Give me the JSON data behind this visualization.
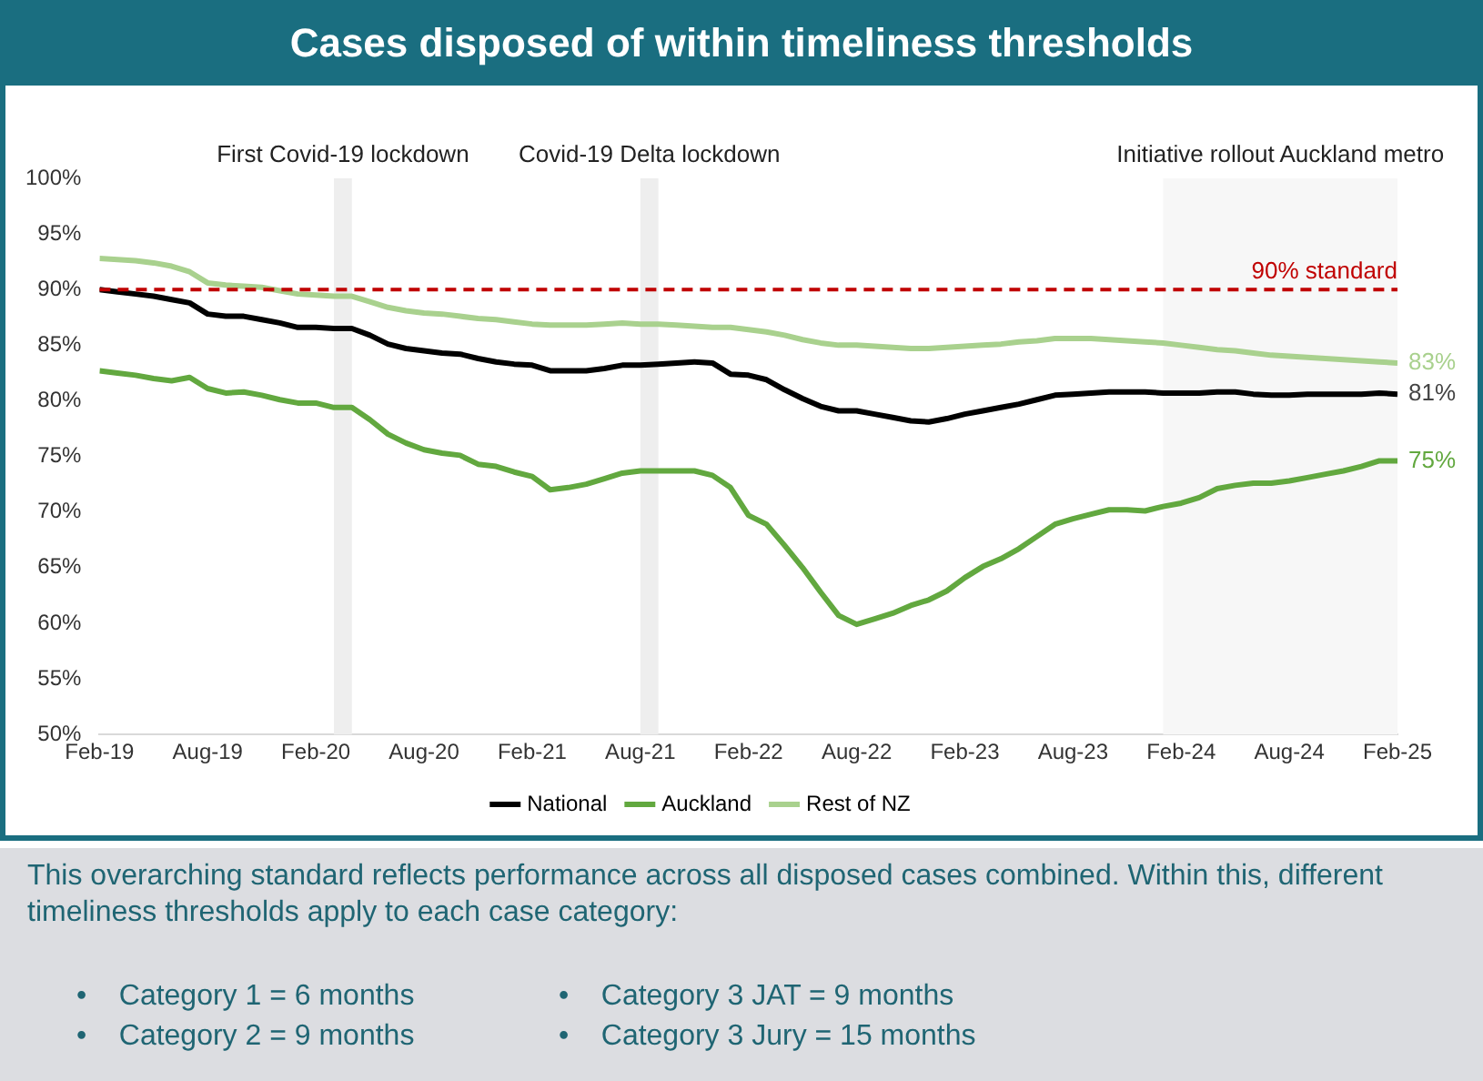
{
  "chart_data": {
    "type": "line",
    "title": "Cases disposed of within timeliness thresholds",
    "x": [
      "2019-02",
      "2019-03",
      "2019-04",
      "2019-05",
      "2019-06",
      "2019-07",
      "2019-08",
      "2019-09",
      "2019-10",
      "2019-11",
      "2019-12",
      "2020-01",
      "2020-02",
      "2020-03",
      "2020-04",
      "2020-05",
      "2020-06",
      "2020-07",
      "2020-08",
      "2020-09",
      "2020-10",
      "2020-11",
      "2020-12",
      "2021-01",
      "2021-02",
      "2021-03",
      "2021-04",
      "2021-05",
      "2021-06",
      "2021-07",
      "2021-08",
      "2021-09",
      "2021-10",
      "2021-11",
      "2021-12",
      "2022-01",
      "2022-02",
      "2022-03",
      "2022-04",
      "2022-05",
      "2022-06",
      "2022-07",
      "2022-08",
      "2022-09",
      "2022-10",
      "2022-11",
      "2022-12",
      "2023-01",
      "2023-02",
      "2023-03",
      "2023-04",
      "2023-05",
      "2023-06",
      "2023-07",
      "2023-08",
      "2023-09",
      "2023-10",
      "2023-11",
      "2023-12",
      "2024-01",
      "2024-02",
      "2024-03",
      "2024-04",
      "2024-05",
      "2024-06",
      "2024-07",
      "2024-08",
      "2024-09",
      "2024-10",
      "2024-11",
      "2024-12",
      "2025-01",
      "2025-02"
    ],
    "series": [
      {
        "name": "National",
        "color": "#000000",
        "values": [
          90.0,
          89.8,
          89.6,
          89.4,
          89.1,
          88.8,
          87.8,
          87.6,
          87.6,
          87.3,
          87.0,
          86.6,
          86.6,
          86.5,
          86.5,
          85.9,
          85.1,
          84.7,
          84.5,
          84.3,
          84.2,
          83.8,
          83.5,
          83.3,
          83.2,
          82.7,
          82.7,
          82.7,
          82.9,
          83.2,
          83.2,
          83.3,
          83.4,
          83.5,
          83.4,
          82.4,
          82.3,
          81.9,
          81.0,
          80.2,
          79.5,
          79.1,
          79.1,
          78.8,
          78.5,
          78.2,
          78.1,
          78.4,
          78.8,
          79.1,
          79.4,
          79.7,
          80.1,
          80.5,
          80.6,
          80.7,
          80.8,
          80.8,
          80.8,
          80.7,
          80.7,
          80.7,
          80.8,
          80.8,
          80.6,
          80.5,
          80.5,
          80.6,
          80.6,
          80.6,
          80.6,
          80.7,
          80.6
        ]
      },
      {
        "name": "Auckland",
        "color": "#62a83f",
        "values": [
          82.7,
          82.5,
          82.3,
          82.0,
          81.8,
          82.1,
          81.1,
          80.7,
          80.8,
          80.5,
          80.1,
          79.8,
          79.8,
          79.4,
          79.4,
          78.3,
          77.0,
          76.2,
          75.6,
          75.3,
          75.1,
          74.3,
          74.1,
          73.6,
          73.2,
          72.0,
          72.2,
          72.5,
          73.0,
          73.5,
          73.7,
          73.7,
          73.7,
          73.7,
          73.3,
          72.2,
          69.7,
          68.9,
          67.0,
          65.0,
          62.8,
          60.7,
          59.9,
          60.4,
          60.9,
          61.6,
          62.1,
          62.9,
          64.1,
          65.1,
          65.8,
          66.7,
          67.8,
          68.9,
          69.4,
          69.8,
          70.2,
          70.2,
          70.1,
          70.5,
          70.8,
          71.3,
          72.1,
          72.4,
          72.6,
          72.6,
          72.8,
          73.1,
          73.4,
          73.7,
          74.1,
          74.6,
          74.6
        ]
      },
      {
        "name": "Rest of NZ",
        "color": "#a9d18e",
        "values": [
          92.8,
          92.7,
          92.6,
          92.4,
          92.1,
          91.6,
          90.6,
          90.4,
          90.3,
          90.2,
          89.9,
          89.6,
          89.5,
          89.4,
          89.4,
          88.9,
          88.4,
          88.1,
          87.9,
          87.8,
          87.6,
          87.4,
          87.3,
          87.1,
          86.9,
          86.8,
          86.8,
          86.8,
          86.9,
          87.0,
          86.9,
          86.9,
          86.8,
          86.7,
          86.6,
          86.6,
          86.4,
          86.2,
          85.9,
          85.5,
          85.2,
          85.0,
          85.0,
          84.9,
          84.8,
          84.7,
          84.7,
          84.8,
          84.9,
          85.0,
          85.1,
          85.3,
          85.4,
          85.6,
          85.6,
          85.6,
          85.5,
          85.4,
          85.3,
          85.2,
          85.0,
          84.8,
          84.6,
          84.5,
          84.3,
          84.1,
          84.0,
          83.9,
          83.8,
          83.7,
          83.6,
          83.5,
          83.4
        ]
      }
    ],
    "xlim": [
      "2019-02",
      "2025-02"
    ],
    "xticks": [
      {
        "value": "2019-02",
        "label": "Feb-19"
      },
      {
        "value": "2019-08",
        "label": "Aug-19"
      },
      {
        "value": "2020-02",
        "label": "Feb-20"
      },
      {
        "value": "2020-08",
        "label": "Aug-20"
      },
      {
        "value": "2021-02",
        "label": "Feb-21"
      },
      {
        "value": "2021-08",
        "label": "Aug-21"
      },
      {
        "value": "2022-02",
        "label": "Feb-22"
      },
      {
        "value": "2022-08",
        "label": "Aug-22"
      },
      {
        "value": "2023-02",
        "label": "Feb-23"
      },
      {
        "value": "2023-08",
        "label": "Aug-23"
      },
      {
        "value": "2024-02",
        "label": "Feb-24"
      },
      {
        "value": "2024-08",
        "label": "Aug-24"
      },
      {
        "value": "2025-02",
        "label": "Feb-25"
      }
    ],
    "ylim": [
      50,
      100
    ],
    "yticks": [
      {
        "value": 50,
        "label": "50%"
      },
      {
        "value": 55,
        "label": "55%"
      },
      {
        "value": 60,
        "label": "60%"
      },
      {
        "value": 65,
        "label": "65%"
      },
      {
        "value": 70,
        "label": "70%"
      },
      {
        "value": 75,
        "label": "75%"
      },
      {
        "value": 80,
        "label": "80%"
      },
      {
        "value": 85,
        "label": "85%"
      },
      {
        "value": 90,
        "label": "90%"
      },
      {
        "value": 95,
        "label": "95%"
      },
      {
        "value": 100,
        "label": "100%"
      }
    ],
    "ref_lines": [
      {
        "axis": "y",
        "value": 90,
        "label": "90% standard",
        "color": "#c00000",
        "line_style": "dashed"
      }
    ],
    "bands": [
      {
        "axis": "x",
        "from": "2020-03",
        "to": "2020-04",
        "label": "First Covid-19 lockdown",
        "color": "#eeeeee"
      },
      {
        "axis": "x",
        "from": "2021-08",
        "to": "2021-09",
        "label": "Covid-19 Delta lockdown",
        "color": "#eeeeee"
      },
      {
        "axis": "x",
        "from": "2024-01",
        "to": "2025-02",
        "label": "Initiative rollout Auckland metro",
        "color": "#f7f7f7"
      }
    ],
    "annotations": [
      {
        "text": "83%",
        "x": "2025-02",
        "y": 83.4
      },
      {
        "text": "81%",
        "x": "2025-02",
        "y": 80.6
      },
      {
        "text": "75%",
        "x": "2025-02",
        "y": 74.6
      },
      "This overarching standard reflects performance across all disposed cases combined. Within this, different timeliness thresholds apply to each case category:",
      "•    Category 1 = 6 months",
      "•    Category 2 = 9 months",
      "•    Category 3 JAT = 9 months",
      "•    Category 3 Jury = 15 months"
    ],
    "legend": "bottom",
    "marker": "none",
    "line_style": "solid"
  }
}
